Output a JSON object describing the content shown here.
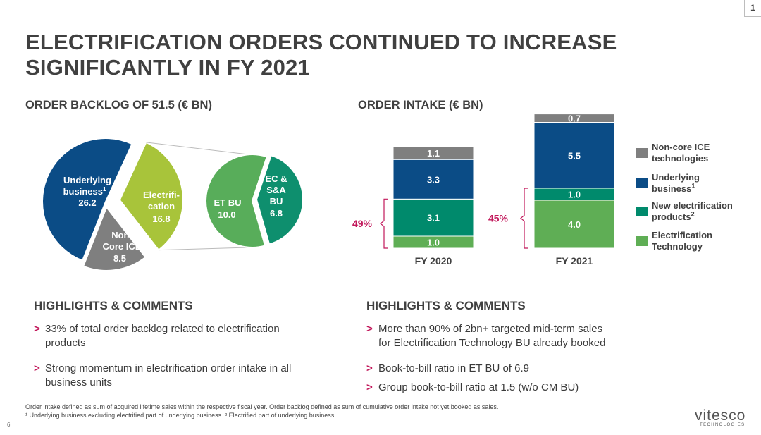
{
  "page": {
    "corner_number": "1",
    "title_line1": "ELECTRIFICATION ORDERS CONTINUED TO INCREASE",
    "title_line2": "SIGNIFICANTLY IN FY 2021",
    "page_number": "6"
  },
  "backlog": {
    "section_title": "ORDER BACKLOG OF 51.5 (€ BN)"
  },
  "intake": {
    "section_title": "ORDER INTAKE (€ BN)"
  },
  "colors": {
    "non_core_ice": "#7f7f7f",
    "underlying": "#0b4c86",
    "new_electrification": "#008a6c",
    "electrification_tech": "#5fae55",
    "electrification_pie": "#a8c43a",
    "et_bu": "#58ad5a",
    "ec_sa_bu": "#0e8f6e",
    "accent": "#c2185b",
    "highlight_bg": "#e6e6e6"
  },
  "chart_data": [
    {
      "type": "pie",
      "title": "ORDER BACKLOG OF 51.5 (€ BN)",
      "slices": [
        {
          "label_lines": [
            "Underlying",
            "business"
          ],
          "footnote": "1",
          "value": 26.2,
          "value_label": "26.2"
        },
        {
          "label_lines": [
            "Electrifi-",
            "cation"
          ],
          "value": 16.8,
          "value_label": "16.8"
        },
        {
          "label_lines": [
            "Non-",
            "Core ICE"
          ],
          "value": 8.5,
          "value_label": "8.5"
        }
      ],
      "breakdown": {
        "of": "Electrification",
        "slices": [
          {
            "label_lines": [
              "ET BU"
            ],
            "value": 10.0,
            "value_label": "10.0"
          },
          {
            "label_lines": [
              "EC &",
              "S&A",
              "BU"
            ],
            "value": 6.8,
            "value_label": "6.8"
          }
        ]
      }
    },
    {
      "type": "bar",
      "stacked": true,
      "title": "ORDER INTAKE (€ BN)",
      "categories": [
        "FY 2020",
        "FY 2021"
      ],
      "series": [
        {
          "name": "Electrification Technology",
          "values": [
            1.0,
            4.0
          ],
          "labels": [
            "1.0",
            "4.0"
          ]
        },
        {
          "name": "New electrification products",
          "footnote": "2",
          "values": [
            3.1,
            1.0
          ],
          "labels": [
            "3.1",
            "1.0"
          ]
        },
        {
          "name": "Underlying business",
          "footnote": "1",
          "values": [
            3.3,
            5.5
          ],
          "labels": [
            "3.3",
            "5.5"
          ]
        },
        {
          "name": "Non-core ICE technologies",
          "values": [
            1.1,
            0.7
          ],
          "labels": [
            "1.1",
            "0.7"
          ]
        }
      ],
      "annotations": [
        "49%",
        "45%"
      ],
      "legend": {
        "position": "right",
        "items": [
          {
            "lines": [
              "Non-core ICE",
              "technologies"
            ]
          },
          {
            "lines": [
              "Underlying",
              "business"
            ],
            "footnote": "1"
          },
          {
            "lines": [
              "New electrification",
              "products"
            ],
            "footnote": "2"
          },
          {
            "lines": [
              "Electrification",
              "Technology"
            ]
          }
        ]
      }
    }
  ],
  "highlights_left": {
    "title": "HIGHLIGHTS & COMMENTS",
    "item1_line1": "33% of total order backlog related to electrification",
    "item1_line2": "products",
    "item2_line1": "Strong momentum in electrification order intake in all",
    "item2_line2": "business units",
    "chevron": ">"
  },
  "highlights_right": {
    "title": "HIGHLIGHTS & COMMENTS",
    "item1_line1": "More than 90% of 2bn+ targeted mid-term sales",
    "item1_line2": "for Electrification Technology BU already booked",
    "item2": "Book-to-bill ratio in ET BU of 6.9",
    "item3": "Group book-to-bill ratio at 1.5 (w/o CM BU)",
    "chevron": ">"
  },
  "footnotes": {
    "line1": "Order intake defined as sum of acquired lifetime sales within the respective fiscal year. Order backlog defined as sum of cumulative order intake not yet booked as sales.",
    "line2": "¹ Underlying business excluding electrified part of underlying business. ² Electrified part of underlying business."
  },
  "logo": {
    "name": "vitesco",
    "sub": "TECHNOLOGIES"
  }
}
